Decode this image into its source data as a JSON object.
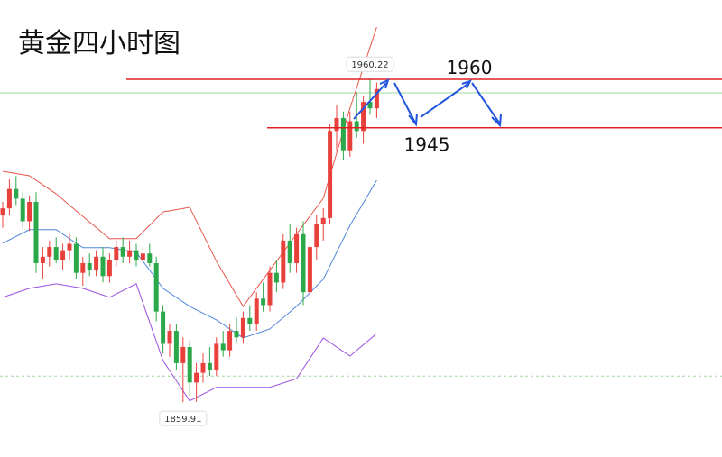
{
  "chart_data": {
    "type": "candlestick",
    "title": "黄金四小时图",
    "ylim": [
      1842.9,
      1984.6
    ],
    "up_color": "#e8413c",
    "down_color": "#2ba84a",
    "open": [
      1918,
      1920,
      1926,
      1923,
      1916,
      1922,
      1903,
      1905,
      1908,
      1904,
      1907,
      1909,
      1900,
      1903,
      1901,
      1905,
      1899,
      1904,
      1908,
      1905,
      1907,
      1904,
      1906,
      1903,
      1888,
      1878,
      1882,
      1872,
      1877,
      1866,
      1869,
      1872,
      1870,
      1878,
      1876,
      1882,
      1880,
      1886,
      1884,
      1892,
      1890,
      1900,
      1897,
      1910,
      1903,
      1912,
      1894,
      1908,
      1915,
      1917,
      1944,
      1948,
      1938,
      1947,
      1944,
      1953,
      1951
    ],
    "high": [
      1922,
      1929,
      1930,
      1925,
      1924,
      1925,
      1908,
      1910,
      1911,
      1909,
      1912,
      1911,
      1905,
      1906,
      1907,
      1908,
      1906,
      1910,
      1911,
      1910,
      1909,
      1908,
      1909,
      1905,
      1890,
      1884,
      1884,
      1880,
      1879,
      1872,
      1875,
      1877,
      1880,
      1882,
      1884,
      1886,
      1888,
      1890,
      1894,
      1897,
      1902,
      1904,
      1912,
      1915,
      1914,
      1916,
      1910,
      1918,
      1920,
      1946,
      1952,
      1950,
      1950,
      1956,
      1955,
      1960.22,
      1959
    ],
    "low": [
      1914,
      1918,
      1921,
      1914,
      1913,
      1900,
      1898,
      1902,
      1903,
      1901,
      1904,
      1898,
      1896,
      1899,
      1899,
      1897,
      1897,
      1902,
      1903,
      1903,
      1902,
      1903,
      1902,
      1885,
      1875,
      1874,
      1870,
      1859.91,
      1862,
      1860,
      1866,
      1868,
      1868,
      1874,
      1874,
      1878,
      1878,
      1882,
      1882,
      1888,
      1888,
      1894,
      1895,
      1900,
      1900,
      1890,
      1892,
      1904,
      1910,
      1915,
      1938,
      1935,
      1936,
      1942,
      1940,
      1949,
      1948
    ],
    "close": [
      1920,
      1926,
      1923,
      1916,
      1922,
      1903,
      1905,
      1908,
      1904,
      1907,
      1909,
      1900,
      1903,
      1901,
      1905,
      1899,
      1904,
      1908,
      1905,
      1907,
      1904,
      1906,
      1903,
      1888,
      1878,
      1882,
      1872,
      1877,
      1866,
      1869,
      1872,
      1870,
      1878,
      1876,
      1882,
      1880,
      1886,
      1884,
      1892,
      1890,
      1900,
      1897,
      1910,
      1903,
      1912,
      1894,
      1908,
      1915,
      1917,
      1944,
      1948,
      1938,
      1947,
      1944,
      1953,
      1951,
      1957
    ],
    "band_index": [
      0,
      4,
      8,
      12,
      16,
      20,
      24,
      28,
      32,
      36,
      40,
      44,
      48,
      52,
      56
    ],
    "bands": [
      {
        "color": "#e8574a",
        "values": [
          1931.5,
          1930.1,
          1924.5,
          1917.5,
          1910.6,
          1910.6,
          1918.9,
          1920.3,
          1903.6,
          1889.6,
          1900.8,
          1912,
          1923.1,
          1951.1,
          1976.2
        ]
      },
      {
        "color": "#4f86d8",
        "values": [
          1909.2,
          1913.4,
          1913.4,
          1907.8,
          1907.8,
          1906.4,
          1895.2,
          1889.6,
          1885.4,
          1879.8,
          1882.6,
          1889.6,
          1898,
          1914.7,
          1928.7
        ]
      },
      {
        "color": "#9b4fe0",
        "values": [
          1892.4,
          1895.2,
          1896.6,
          1895.2,
          1892.4,
          1896.6,
          1872.8,
          1860.3,
          1864.5,
          1864.5,
          1864.5,
          1867.2,
          1879.8,
          1874.2,
          1881.2
        ]
      }
    ],
    "levels": [
      {
        "value": 1960,
        "color": "#e02020"
      },
      {
        "value": 1945,
        "color": "#e02020"
      }
    ],
    "guides": [
      1955.8,
      1868
    ]
  }
}
